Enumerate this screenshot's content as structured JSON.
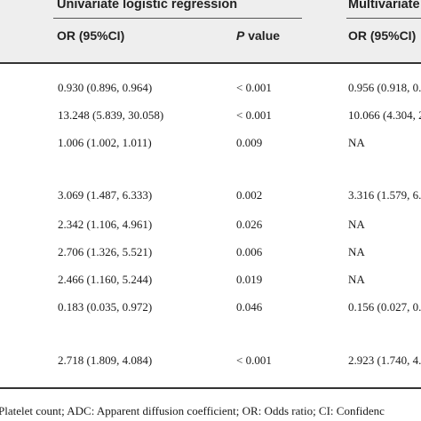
{
  "header": {
    "univariate": "Univariate logistic regression",
    "multivariate": "Multivariate l",
    "or_ci_1": "OR (95%CI)",
    "p_value_p": "P",
    "p_value_rest": " value",
    "or_ci_2": "OR (95%CI)"
  },
  "rows": [
    {
      "or": "0.930 (0.896, 0.964)",
      "p": "< 0.001",
      "mv": "0.956 (0.918, 0."
    },
    {
      "or": "13.248 (5.839, 30.058)",
      "p": "< 0.001",
      "mv": "10.066 (4.304, 2"
    },
    {
      "or": "1.006 (1.002, 1.011)",
      "p": "0.009",
      "mv": "NA"
    },
    {
      "or": "3.069 (1.487, 6.333)",
      "p": "0.002",
      "mv": "3.316 (1.579, 6."
    },
    {
      "or": "2.342 (1.106, 4.961)",
      "p": "0.026",
      "mv": "NA"
    },
    {
      "or": "2.706 (1.326, 5.521)",
      "p": "0.006",
      "mv": "NA"
    },
    {
      "or": "2.466 (1.160, 5.244)",
      "p": "0.019",
      "mv": "NA"
    },
    {
      "or": "0.183 (0.035, 0.972)",
      "p": "0.046",
      "mv": "0.156 (0.027, 0."
    },
    {
      "or": "2.718 (1.809, 4.084)",
      "p": "< 0.001",
      "mv": "2.923 (1.740, 4."
    }
  ],
  "footnote": "Platelet count; ADC: Apparent diffusion coefficient; OR: Odds ratio; CI: Confidenc"
}
